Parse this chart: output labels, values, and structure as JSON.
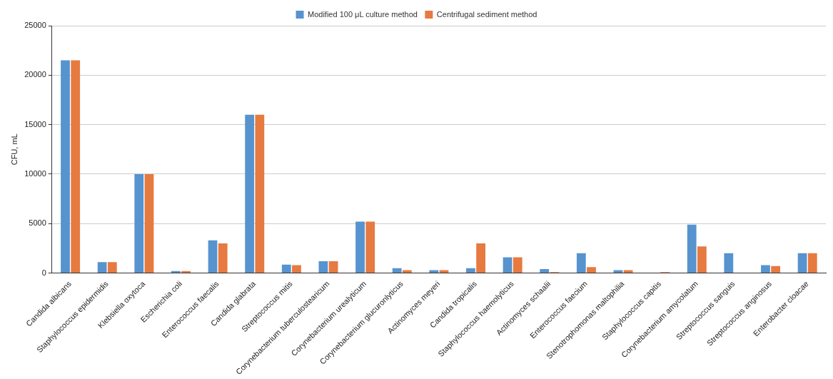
{
  "chart_data": {
    "type": "bar",
    "ylabel": "CFU, mL",
    "categories": [
      "Candida albicans",
      "Staphylococcus epidermidis",
      "Klebsiella oxytoca",
      "Escherichia coli",
      "Enterococcus faecalis",
      "Candida glabrata",
      "Streptococcus mitis",
      "Corynebacterium tuberculostearicum",
      "Corynebacterium urealyticum",
      "Corynebacterium glucuronlyticus",
      "Actinomyces meyeri",
      "Candida tropicalis",
      "Staphylococcus haemolyticus",
      "Actinomyces schaalii",
      "Enterococcus faecium",
      "Stenotrophomonas maltophilia",
      "Staphylococcus capitis",
      "Corynebacterium amycolatum",
      "Streptococcus sanguis",
      "Streptococcus anginosus",
      "Enterobacter cloacae"
    ],
    "series": [
      {
        "name": "Modified 100 μL culture method",
        "color": "#5793ce",
        "values": [
          21500,
          1100,
          10000,
          200,
          3300,
          16000,
          850,
          1200,
          5200,
          500,
          300,
          500,
          1600,
          400,
          2000,
          300,
          0,
          4900,
          2000,
          800,
          2000
        ]
      },
      {
        "name": "Centrifugal sediment method",
        "color": "#e67a40",
        "values": [
          21500,
          1100,
          10000,
          200,
          3000,
          16000,
          800,
          1200,
          5200,
          300,
          300,
          3000,
          1600,
          100,
          600,
          300,
          100,
          2700,
          0,
          700,
          2000
        ]
      }
    ],
    "ylim": [
      0,
      25000
    ],
    "yticks": [
      0,
      5000,
      10000,
      15000,
      20000,
      25000
    ],
    "grid": "y",
    "legend": "top"
  }
}
